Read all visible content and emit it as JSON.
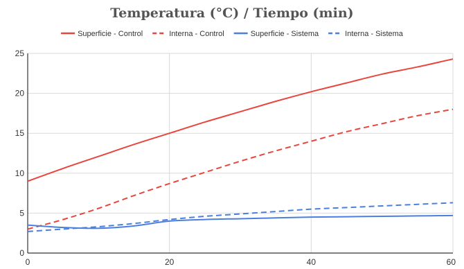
{
  "chart_data": {
    "type": "line",
    "title": "Temperatura (°C) / Tiempo (min)",
    "xlabel": "",
    "ylabel": "",
    "xlim": [
      0,
      60
    ],
    "ylim": [
      0,
      25
    ],
    "x_ticks": [
      0,
      20,
      40,
      60
    ],
    "y_ticks": [
      0,
      5,
      10,
      15,
      20,
      25
    ],
    "grid": true,
    "legend_position": "top",
    "series": [
      {
        "name": "Superficie - Control",
        "color": "#e8453c",
        "dash": "solid",
        "x": [
          0,
          5,
          10,
          15,
          20,
          25,
          30,
          35,
          40,
          45,
          50,
          55,
          60
        ],
        "y": [
          9.0,
          10.6,
          12.1,
          13.6,
          15.0,
          16.4,
          17.7,
          19.0,
          20.2,
          21.3,
          22.4,
          23.3,
          24.3
        ]
      },
      {
        "name": "Interna - Control",
        "color": "#e8453c",
        "dash": "dashed",
        "x": [
          0,
          5,
          10,
          15,
          20,
          25,
          30,
          35,
          40,
          45,
          50,
          55,
          60
        ],
        "y": [
          3.0,
          4.2,
          5.6,
          7.2,
          8.7,
          10.1,
          11.5,
          12.8,
          14.0,
          15.2,
          16.2,
          17.2,
          18.0
        ]
      },
      {
        "name": "Superficie - Sistema",
        "color": "#4a7fe0",
        "dash": "solid",
        "x": [
          0,
          5,
          10,
          15,
          20,
          25,
          30,
          35,
          40,
          45,
          50,
          55,
          60
        ],
        "y": [
          3.5,
          3.2,
          3.1,
          3.4,
          4.0,
          4.2,
          4.3,
          4.4,
          4.5,
          4.55,
          4.6,
          4.65,
          4.7
        ]
      },
      {
        "name": "Interna - Sistema",
        "color": "#4a7fe0",
        "dash": "dashed",
        "x": [
          0,
          5,
          10,
          15,
          20,
          25,
          30,
          35,
          40,
          45,
          50,
          55,
          60
        ],
        "y": [
          2.7,
          3.0,
          3.3,
          3.7,
          4.2,
          4.6,
          4.9,
          5.2,
          5.5,
          5.7,
          5.9,
          6.1,
          6.3
        ]
      }
    ]
  }
}
